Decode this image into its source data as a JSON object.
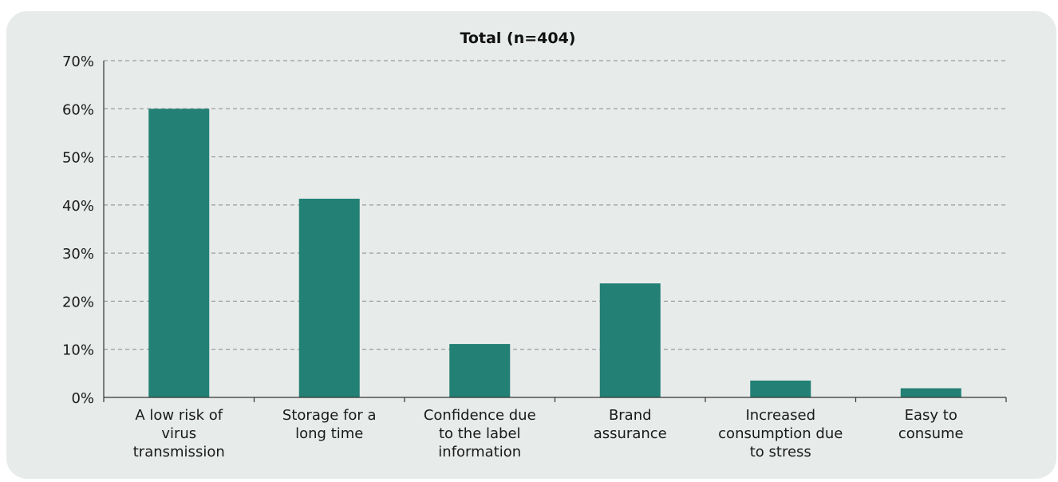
{
  "chart_data": {
    "type": "bar",
    "title": "Total (n=404)",
    "xlabel": "",
    "ylabel": "",
    "categories": [
      [
        "A low risk of",
        "virus",
        "transmission"
      ],
      [
        "Storage for a",
        "long time"
      ],
      [
        "Confidence due",
        "to the label",
        "information"
      ],
      [
        "Brand",
        "assurance"
      ],
      [
        "Increased",
        "consumption due",
        "to stress"
      ],
      [
        "Easy to",
        "consume"
      ]
    ],
    "values": [
      60.0,
      41.3,
      11.1,
      23.7,
      3.5,
      1.9
    ],
    "ylim": [
      0,
      70
    ],
    "yticks": [
      0,
      10,
      20,
      30,
      40,
      50,
      60,
      70
    ],
    "ytick_suffix": "%",
    "grid": true,
    "legend": "none",
    "colors": {
      "bar": "#238075",
      "panel": "#e7ebea",
      "grid": "#8a8a8a",
      "axis": "#333333",
      "text": "#1a1a1a"
    }
  }
}
